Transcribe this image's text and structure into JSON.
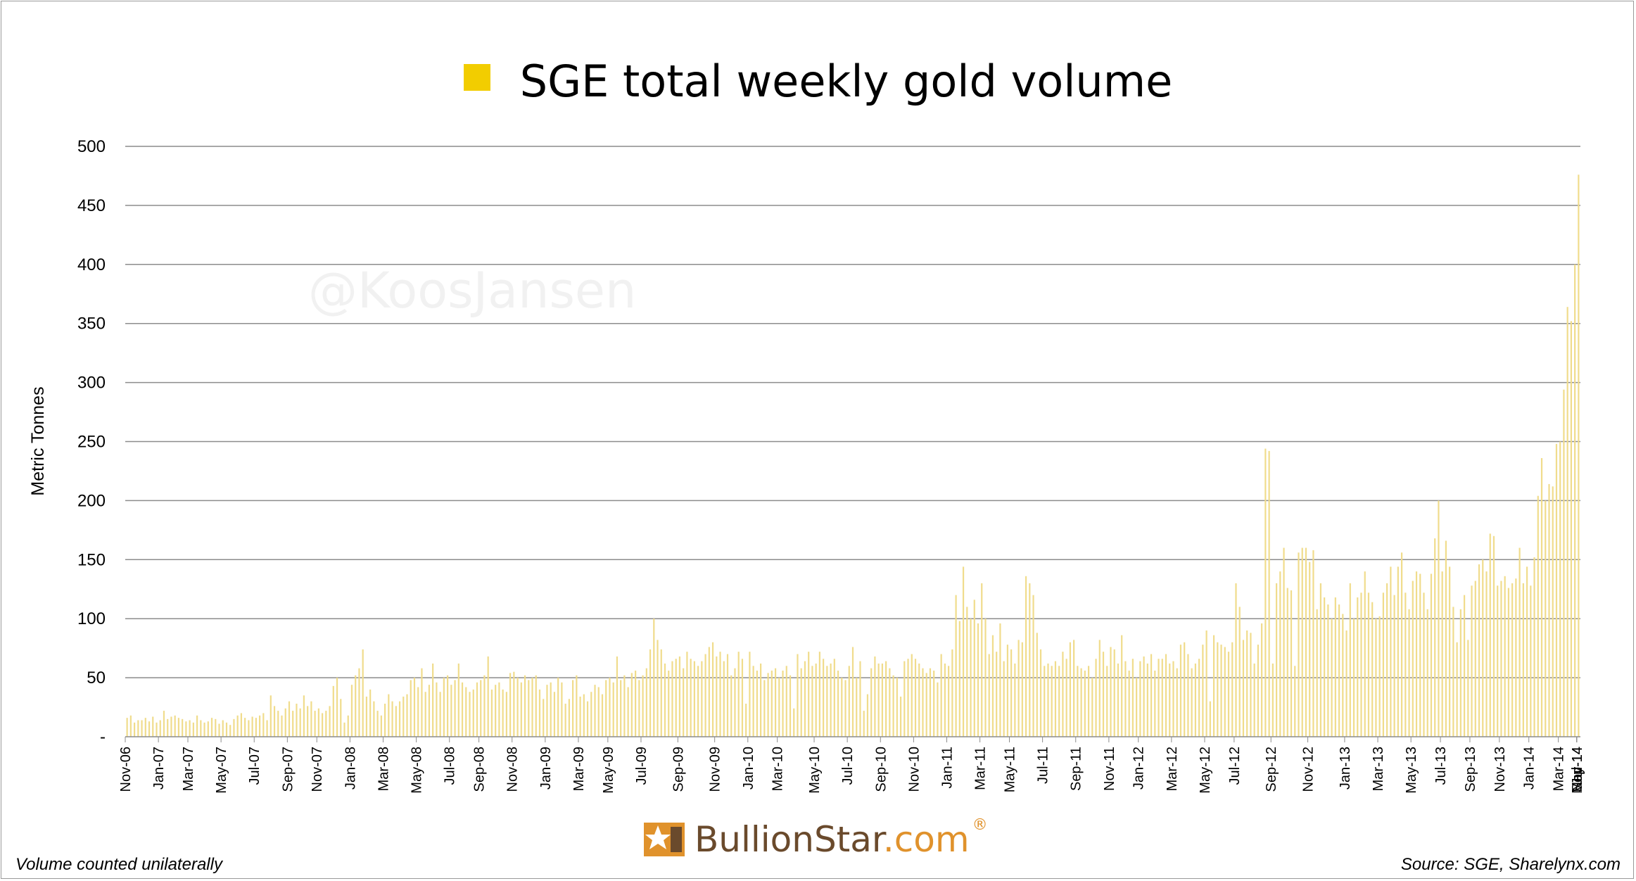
{
  "colors": {
    "bar": "#f0dc8c",
    "legend": "#f2cd00",
    "grid": "#8c8c8c",
    "watermark": "#f1f1f1",
    "logo_primary": "#6a4a2c",
    "logo_accent": "#e0922c"
  },
  "watermark": "@KoosJansen",
  "logo": {
    "name": "BullionStar",
    "suffix": ".com",
    "reg": "®"
  },
  "footnote_left": "Volume counted unilaterally",
  "footnote_right": "Source: SGE, Sharelynx.com",
  "chart_data": {
    "type": "bar",
    "title": "",
    "legend": [
      {
        "name": "SGE total weekly gold volume",
        "color": "#f2cd00"
      }
    ],
    "legend_position": "top-center",
    "ylabel": "Metric Tonnes",
    "xlabel": "",
    "ylim": [
      0,
      500
    ],
    "grid": true,
    "yticks": [
      {
        "value": 0,
        "label": "-"
      },
      {
        "value": 50,
        "label": "50"
      },
      {
        "value": 100,
        "label": "100"
      },
      {
        "value": 150,
        "label": "150"
      },
      {
        "value": 200,
        "label": "200"
      },
      {
        "value": 250,
        "label": "250"
      },
      {
        "value": 300,
        "label": "300"
      },
      {
        "value": 350,
        "label": "350"
      },
      {
        "value": 400,
        "label": "400"
      },
      {
        "value": 450,
        "label": "450"
      },
      {
        "value": 500,
        "label": "500"
      }
    ],
    "x_tick_labels": [
      "Nov-06",
      "Jan-07",
      "Mar-07",
      "May-07",
      "Jul-07",
      "Sep-07",
      "Nov-07",
      "Jan-08",
      "Mar-08",
      "May-08",
      "Jul-08",
      "Sep-08",
      "Nov-08",
      "Jan-09",
      "Mar-09",
      "May-09",
      "Jul-09",
      "Sep-09",
      "Nov-09",
      "Jan-10",
      "Mar-10",
      "May-10",
      "Jul-10",
      "Sep-10",
      "Nov-10",
      "Jan-11",
      "Mar-11",
      "May-11",
      "Jul-11",
      "Sep-11",
      "Nov-11",
      "Jan-12",
      "Mar-12",
      "May-12",
      "Jul-12",
      "Sep-12",
      "Nov-12",
      "Jan-13",
      "Mar-13",
      "May-13",
      "Jul-13",
      "Sep-13",
      "Nov-13",
      "Jan-14",
      "Mar-14",
      "May-14",
      "Jul-14",
      "Sep-14",
      "Nov-14"
    ],
    "series": [
      {
        "name": "SGE total weekly gold volume",
        "unit": "weekly",
        "monthly_values": [
          [
            16,
            18,
            12,
            14
          ],
          [
            14,
            16,
            13,
            17,
            12
          ],
          [
            14,
            22,
            15,
            17
          ],
          [
            18,
            16,
            15,
            13
          ],
          [
            14,
            12,
            18,
            14,
            12
          ],
          [
            13,
            16,
            15,
            11
          ],
          [
            14,
            12,
            10,
            15
          ],
          [
            18,
            20,
            16,
            14,
            17
          ],
          [
            16,
            18,
            20,
            14
          ],
          [
            35,
            26,
            22,
            18,
            24
          ],
          [
            30,
            22,
            28,
            24
          ],
          [
            35,
            26,
            30,
            22
          ],
          [
            24,
            20,
            22,
            26,
            43
          ],
          [
            50,
            32,
            12,
            18
          ],
          [
            44,
            52,
            58,
            74
          ],
          [
            34,
            40,
            30,
            22,
            18
          ],
          [
            28,
            36,
            30,
            26
          ],
          [
            30,
            34,
            36,
            48,
            50
          ],
          [
            42,
            58,
            38,
            44
          ],
          [
            62,
            46,
            38,
            50,
            52
          ],
          [
            44,
            48,
            62,
            46
          ],
          [
            42,
            38,
            40,
            46
          ],
          [
            48,
            52,
            68,
            40,
            44
          ],
          [
            46,
            40,
            38,
            54
          ],
          [
            55,
            50,
            46,
            52
          ],
          [
            48,
            50,
            52,
            40,
            32
          ],
          [
            44,
            46,
            38,
            50
          ],
          [
            46,
            28,
            32,
            48,
            52
          ],
          [
            34,
            36,
            30,
            38
          ],
          [
            44,
            42,
            36,
            48
          ],
          [
            50,
            46,
            68,
            48,
            52
          ],
          [
            42,
            54,
            56,
            48
          ],
          [
            52,
            58,
            74,
            100,
            82,
            74
          ],
          [
            62,
            56,
            64,
            66
          ],
          [
            68,
            58,
            72,
            66,
            64
          ],
          [
            60,
            64,
            70,
            76,
            80
          ],
          [
            68,
            72,
            64,
            70
          ],
          [
            52,
            58,
            72,
            66,
            28
          ],
          [
            72,
            60,
            56,
            62
          ],
          [
            48,
            54,
            56,
            58
          ],
          [
            50,
            56,
            60,
            52,
            24
          ],
          [
            70,
            58,
            64,
            72,
            60
          ],
          [
            62,
            72,
            66,
            60
          ],
          [
            62,
            66,
            56,
            50,
            48
          ],
          [
            60,
            76,
            50,
            64
          ],
          [
            22,
            36,
            58,
            68,
            62
          ],
          [
            62,
            64,
            58,
            52
          ],
          [
            50,
            34,
            64,
            66,
            70
          ],
          [
            66,
            62,
            58,
            54
          ],
          [
            58,
            56,
            46,
            70,
            62
          ],
          [
            60,
            74,
            120,
            98
          ],
          [
            144,
            110,
            100,
            116,
            96
          ],
          [
            130,
            100,
            70,
            86
          ],
          [
            72,
            96,
            64,
            78
          ],
          [
            74,
            62,
            82,
            80
          ],
          [
            136,
            130,
            120,
            88,
            74
          ],
          [
            60,
            62,
            60,
            64
          ],
          [
            60,
            72,
            66,
            80,
            82
          ],
          [
            60,
            58,
            56,
            60
          ],
          [
            50,
            66,
            82,
            72,
            60
          ],
          [
            76,
            74,
            62,
            86
          ],
          [
            64,
            56,
            66,
            50
          ],
          [
            64,
            68,
            62,
            70,
            56
          ],
          [
            66,
            66,
            70,
            62
          ],
          [
            64,
            58,
            78,
            80
          ],
          [
            70,
            58,
            62,
            66,
            78
          ],
          [
            90,
            30,
            86,
            80
          ],
          [
            78,
            76,
            72,
            80
          ],
          [
            130,
            110,
            82,
            90,
            88
          ],
          [
            62,
            78,
            96,
            244,
            242
          ],
          [
            62,
            130,
            140,
            160,
            126
          ],
          [
            124,
            60,
            156,
            160,
            160
          ],
          [
            148,
            158,
            108,
            130,
            118
          ],
          [
            112,
            100,
            118,
            112,
            104
          ],
          [
            90,
            130,
            100,
            118,
            122
          ],
          [
            140,
            122,
            114,
            100
          ],
          [
            102,
            122,
            130,
            144,
            120
          ],
          [
            144,
            156,
            122,
            108
          ],
          [
            132,
            140,
            138,
            122
          ],
          [
            108,
            138,
            168,
            200
          ],
          [
            140,
            166,
            144,
            110
          ],
          [
            80,
            108,
            120,
            82
          ],
          [
            128,
            132,
            146,
            150
          ],
          [
            140,
            172,
            170,
            128
          ],
          [
            132,
            136,
            126,
            130
          ],
          [
            134,
            160,
            130,
            144
          ],
          [
            128,
            152,
            204,
            236
          ],
          [
            200,
            214,
            212,
            248
          ],
          [
            250,
            294,
            364,
            352
          ],
          [
            400,
            476
          ]
        ]
      }
    ]
  }
}
